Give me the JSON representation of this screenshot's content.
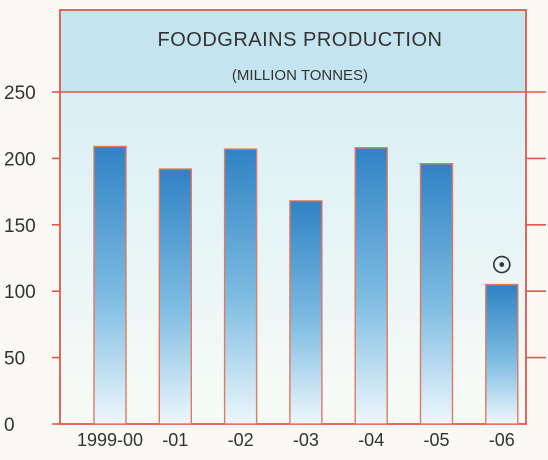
{
  "chart_data": {
    "type": "bar",
    "title": "FOODGRAINS PRODUCTION",
    "subtitle": "(MILLION TONNES)",
    "categories": [
      "1999-00",
      "-01",
      "-02",
      "-03",
      "-04",
      "-05",
      "-06"
    ],
    "values": [
      209,
      192,
      207,
      168,
      208,
      196,
      105
    ],
    "annotations": [
      {
        "category": "-06",
        "symbol": "⊙"
      }
    ],
    "yticks": [
      0,
      50,
      100,
      150,
      200,
      250
    ],
    "ylim": [
      0,
      250
    ],
    "xlabel": "",
    "ylabel": "",
    "grid": false,
    "colors": {
      "bar_top": "#2f82c4",
      "bar_mid": "#7fbde2",
      "bar_bottom": "#eef7fc",
      "bar_outline": "#e07a60",
      "frame": "#e2584a",
      "title_band": "#c4e4ef",
      "plot_top": "#d2ecf4",
      "plot_bottom": "#f8fbf6",
      "text": "#333333"
    }
  }
}
